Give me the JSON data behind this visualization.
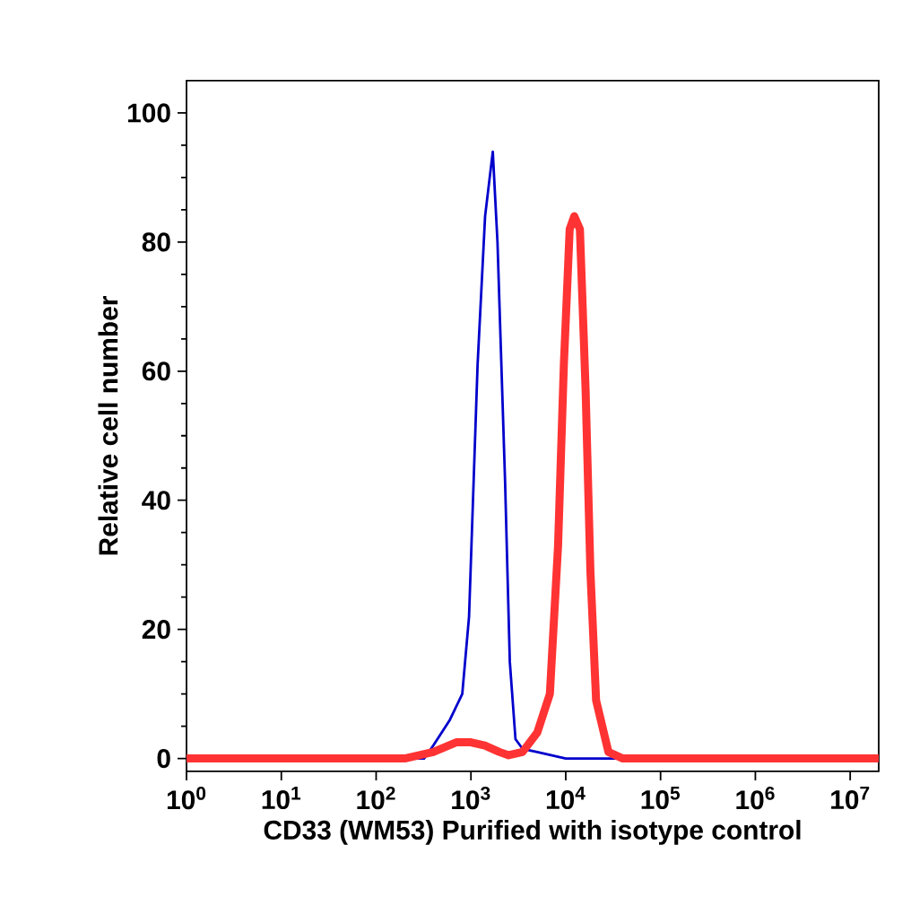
{
  "chart_data": {
    "type": "line",
    "xlabel": "CD33 (WM53) Purified with isotype control",
    "ylabel": "Relative cell number",
    "log": "x",
    "xlim": [
      1,
      20000000
    ],
    "ylim": [
      -2,
      105
    ],
    "xticks": [
      {
        "value": 1,
        "label": "10$^{0}$"
      },
      {
        "value": 10,
        "label": "10$^{1}$"
      },
      {
        "value": 100,
        "label": "10$^{2}$"
      },
      {
        "value": 1000,
        "label": "10$^{3}$"
      },
      {
        "value": 10000,
        "label": "10$^{4}$"
      },
      {
        "value": 100000,
        "label": "10$^{5}$"
      },
      {
        "value": 1000000,
        "label": "10$^{6}$"
      },
      {
        "value": 10000000,
        "label": "10$^{7}$"
      }
    ],
    "yticks": [
      0,
      20,
      40,
      60,
      80,
      100
    ],
    "grid": false,
    "marker": "none",
    "line_style": "solid",
    "series": [
      {
        "color": "#0000cc",
        "x": [
          1,
          200,
          320,
          400,
          600,
          810,
          955,
          1175,
          1410,
          1700,
          1905,
          2290,
          2570,
          2950,
          3500,
          5000,
          10000,
          20000000
        ],
        "values": [
          0,
          0,
          0,
          2,
          6,
          10,
          22,
          61,
          84,
          94,
          80,
          43,
          15,
          3,
          1.5,
          1,
          0,
          0
        ]
      },
      {
        "color": "#ff3333",
        "x": [
          1,
          200,
          400,
          700,
          1000,
          1400,
          2000,
          2500,
          3500,
          5000,
          6800,
          8300,
          9550,
          11000,
          12300,
          14100,
          16200,
          18200,
          20900,
          28200,
          40000,
          20000000
        ],
        "values": [
          0,
          0,
          1,
          2.5,
          2.5,
          2,
          1,
          0.5,
          1,
          4,
          10,
          33,
          61,
          82,
          84,
          82,
          57,
          29,
          9,
          1,
          0,
          0
        ]
      }
    ]
  }
}
